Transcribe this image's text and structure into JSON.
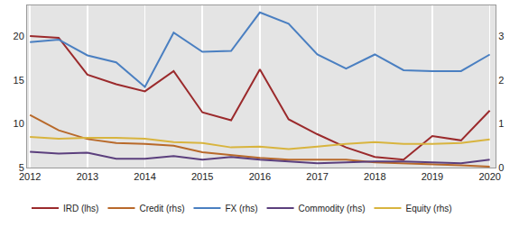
{
  "chart_data": {
    "type": "line",
    "x": [
      2012,
      2012.5,
      2013,
      2013.5,
      2014,
      2014.5,
      2015,
      2015.5,
      2016,
      2016.5,
      2017,
      2017.5,
      2018,
      2018.5,
      2019,
      2019.5,
      2020
    ],
    "xlim": [
      2011.95,
      2020.1
    ],
    "xticks": [
      2012,
      2013,
      2014,
      2015,
      2016,
      2017,
      2018,
      2019,
      2020
    ],
    "ylim": [
      5,
      23.5
    ],
    "yticks": [
      5,
      10,
      15,
      20
    ],
    "y2lim": [
      0,
      3.7
    ],
    "y2ticks": [
      0,
      1,
      2,
      3
    ],
    "grid": "x",
    "legend": "bottom",
    "series": [
      {
        "name": "IRD (lhs)",
        "color": "#9b2a2c",
        "values": [
          20.0,
          19.8,
          15.6,
          14.5,
          13.7,
          16.0,
          11.3,
          10.4,
          16.2,
          10.5,
          8.8,
          7.3,
          6.2,
          5.9,
          8.6,
          8.1,
          11.5
        ]
      },
      {
        "name": "Credit (rhs)",
        "color": "#b8692a",
        "axis": "y2",
        "values": [
          1.2,
          0.85,
          0.65,
          0.56,
          0.54,
          0.5,
          0.35,
          0.28,
          0.22,
          0.18,
          0.18,
          0.18,
          0.12,
          0.1,
          0.08,
          0.05,
          0.02
        ]
      },
      {
        "name": "FX (rhs)",
        "color": "#4a7fc1",
        "axis": "y2",
        "values": [
          2.86,
          2.92,
          2.56,
          2.4,
          1.84,
          3.08,
          2.64,
          2.66,
          3.54,
          3.28,
          2.58,
          2.26,
          2.58,
          2.22,
          2.2,
          2.2,
          2.58
        ]
      },
      {
        "name": "Commodity (rhs)",
        "color": "#5b3f7d",
        "axis": "y2",
        "values": [
          0.36,
          0.32,
          0.34,
          0.2,
          0.2,
          0.26,
          0.18,
          0.24,
          0.18,
          0.14,
          0.1,
          0.12,
          0.14,
          0.14,
          0.12,
          0.1,
          0.18
        ]
      },
      {
        "name": "Equity (rhs)",
        "color": "#d8b43e",
        "axis": "y2",
        "values": [
          0.7,
          0.66,
          0.68,
          0.68,
          0.66,
          0.58,
          0.56,
          0.46,
          0.48,
          0.42,
          0.48,
          0.54,
          0.58,
          0.54,
          0.54,
          0.56,
          0.64
        ]
      }
    ]
  }
}
